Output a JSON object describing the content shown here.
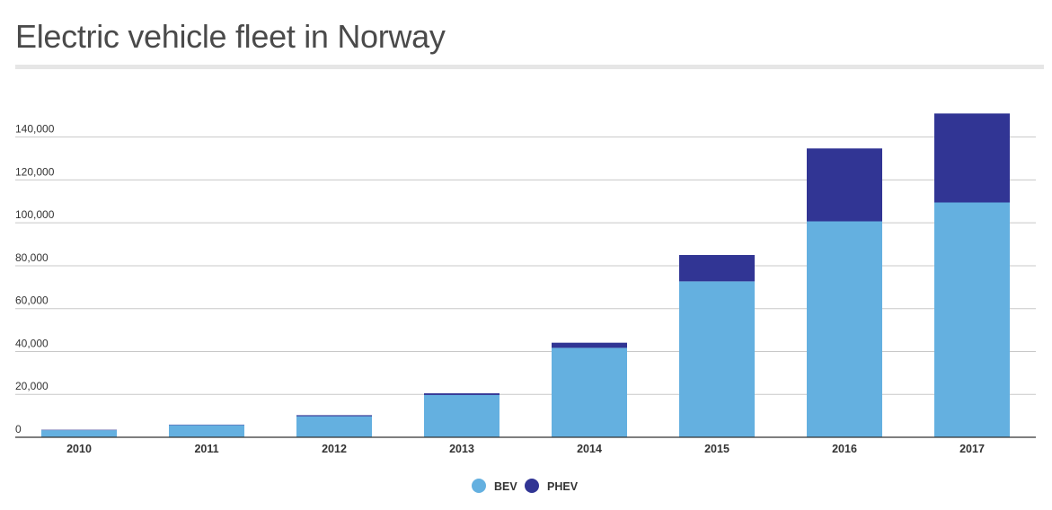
{
  "page": {
    "title": "Electric vehicle fleet in Norway"
  },
  "chart_data": {
    "type": "bar",
    "stacked": true,
    "title": "Electric vehicle fleet in Norway",
    "xlabel": "",
    "ylabel": "",
    "categories": [
      "2010",
      "2011",
      "2012",
      "2013",
      "2014",
      "2015",
      "2016",
      "2017"
    ],
    "series": [
      {
        "name": "BEV",
        "color": "#64b0e0",
        "values": [
          3300,
          5700,
          9800,
          19700,
          41700,
          72700,
          100700,
          109500
        ]
      },
      {
        "name": "PHEV",
        "color": "#313594",
        "values": [
          200,
          200,
          500,
          800,
          2400,
          12300,
          34000,
          41500
        ]
      }
    ],
    "ylim": [
      0,
      152000
    ],
    "yticks": [
      0,
      20000,
      40000,
      60000,
      80000,
      100000,
      120000,
      140000
    ],
    "ytick_labels": [
      "0",
      "20,000",
      "40,000",
      "60,000",
      "80,000",
      "100,000",
      "120,000",
      "140,000"
    ],
    "grid": true,
    "legend": "bottom-center"
  }
}
